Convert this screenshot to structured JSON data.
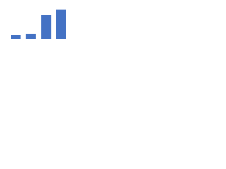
{
  "chart_data": {
    "type": "bar",
    "categories": [
      null,
      null,
      null,
      null
    ],
    "values": [
      6,
      7.5,
      36,
      44
    ],
    "color": "#4472c4",
    "ylim": [
      0,
      50
    ]
  }
}
